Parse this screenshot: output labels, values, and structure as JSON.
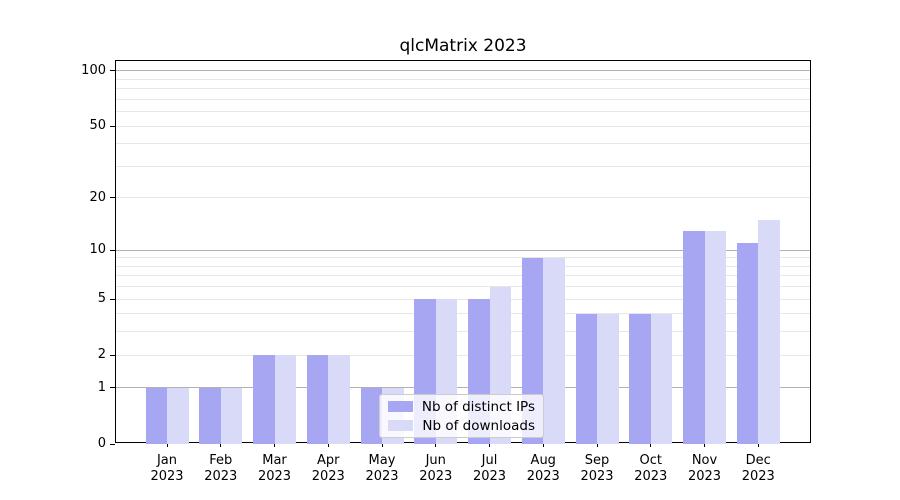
{
  "chart_data": {
    "type": "bar",
    "title": "qlcMatrix 2023",
    "months": [
      "Jan",
      "Feb",
      "Mar",
      "Apr",
      "May",
      "Jun",
      "Jul",
      "Aug",
      "Sep",
      "Oct",
      "Nov",
      "Dec"
    ],
    "year": "2023",
    "series": [
      {
        "key": "distinct-ips",
        "name": "Nb of distinct IPs",
        "color": "#a6a6f2",
        "values": [
          1,
          1,
          2,
          2,
          1,
          5,
          5,
          9,
          4,
          4,
          13,
          11
        ]
      },
      {
        "key": "downloads",
        "name": "Nb of downloads",
        "color": "#d9d9f8",
        "values": [
          1,
          1,
          2,
          2,
          1,
          5,
          6,
          9,
          4,
          4,
          13,
          15
        ]
      }
    ],
    "y_scale": "log10(1+y)",
    "ylim": [
      0,
      100
    ],
    "y_ticks_labeled": [
      0,
      1,
      2,
      5,
      10,
      20,
      50,
      100
    ],
    "y_major_gridlines": [
      1,
      10,
      100
    ],
    "y_minor_gridlines": [
      2,
      3,
      4,
      5,
      6,
      7,
      8,
      9,
      20,
      30,
      40,
      50,
      60,
      70,
      80,
      90
    ],
    "grid": true,
    "legend_location": "lower center"
  },
  "colors": {
    "axis": "#000000",
    "grid_major": "#b2b2b2",
    "grid_minor": "#e7e7e7",
    "legend_border": "#cccccc",
    "legend_background": "rgba(255,255,255,0.8)"
  }
}
